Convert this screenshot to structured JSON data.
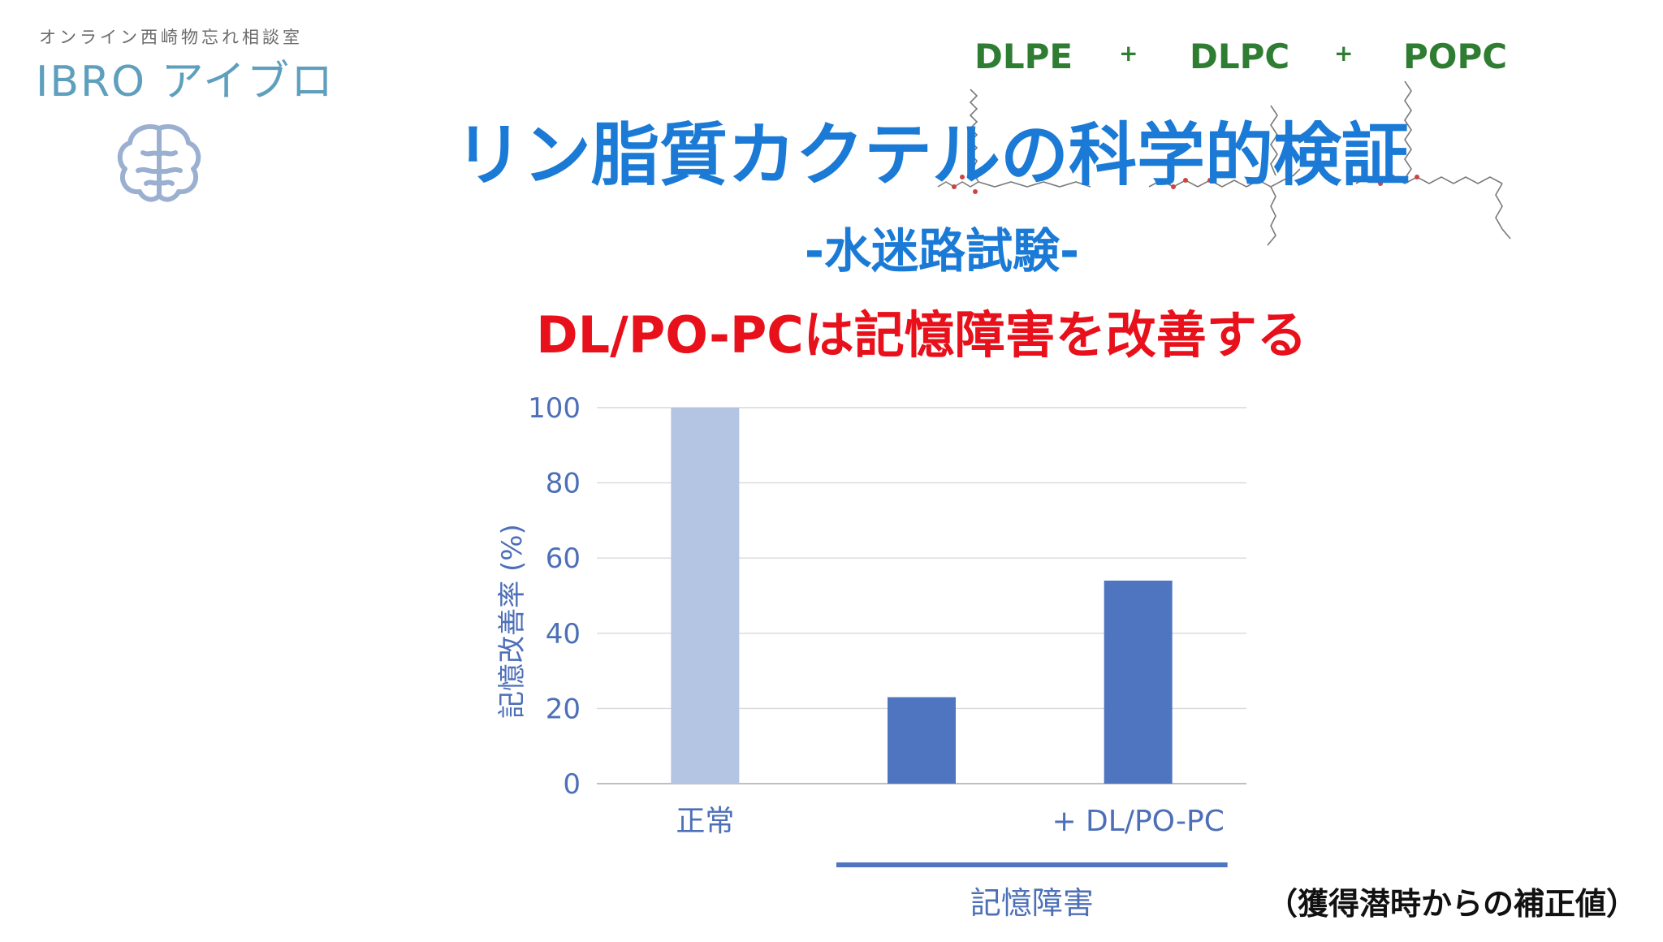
{
  "logo": {
    "subtitle": "オンライン西崎物忘れ相談室",
    "name": "IBRO アイブロ",
    "icon": "brain-icon"
  },
  "formula": {
    "items": [
      "DLPE",
      "DLPC",
      "POPC"
    ],
    "operator": "+",
    "color": "#2e7d32"
  },
  "title": "リン脂質カクテルの科学的検証",
  "subtitle": "-水迷路試験-",
  "headline": "DL/PO-PCは記憶障害を改善する",
  "note": "（獲得潜時からの補正値）",
  "colors": {
    "title": "#1a7ad6",
    "headline": "#e8101a",
    "axis_text": "#4d6fb8",
    "bar_normal": "#b4c5e4",
    "bar_impaired": "#4f75c1",
    "grid": "#d9d9d9"
  },
  "chart_data": {
    "type": "bar",
    "categories": [
      "正常",
      "",
      "+ DL/PO-PC"
    ],
    "values": [
      100,
      23,
      54
    ],
    "ylabel": "記憶改善率 (%)",
    "ylim": [
      0,
      100
    ],
    "yticks": [
      "0",
      "20",
      "40",
      "60",
      "80",
      "100"
    ],
    "group_label": "記憶障害",
    "grid": true
  }
}
